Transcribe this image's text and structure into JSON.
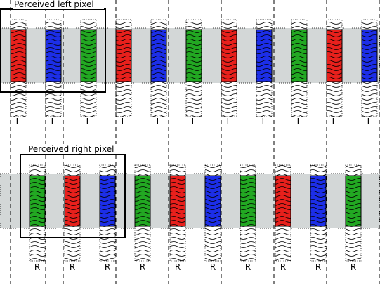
{
  "panels": [
    {
      "title": "Perceived left pixel",
      "strips": [
        {
          "color": "#e8201c",
          "label": "L"
        },
        {
          "color": "#1c2ee8",
          "label": "L"
        },
        {
          "color": "#22a822",
          "label": "L"
        },
        {
          "color": "#e8201c",
          "label": "L"
        },
        {
          "color": "#1c2ee8",
          "label": "L"
        },
        {
          "color": "#22a822",
          "label": "L"
        },
        {
          "color": "#e8201c",
          "label": "L"
        },
        {
          "color": "#1c2ee8",
          "label": "L"
        },
        {
          "color": "#22a822",
          "label": "L"
        },
        {
          "color": "#e8201c",
          "label": "L"
        },
        {
          "color": "#1c2ee8",
          "label": "L"
        }
      ]
    },
    {
      "title": "Perceived right pixel",
      "strips": [
        {
          "color": "#22a822",
          "label": "R"
        },
        {
          "color": "#e8201c",
          "label": "R"
        },
        {
          "color": "#1c2ee8",
          "label": "R"
        },
        {
          "color": "#22a822",
          "label": "R"
        },
        {
          "color": "#e8201c",
          "label": "R"
        },
        {
          "color": "#1c2ee8",
          "label": "R"
        },
        {
          "color": "#22a822",
          "label": "R"
        },
        {
          "color": "#e8201c",
          "label": "R"
        },
        {
          "color": "#1c2ee8",
          "label": "R"
        },
        {
          "color": "#22a822",
          "label": "R"
        }
      ]
    }
  ]
}
